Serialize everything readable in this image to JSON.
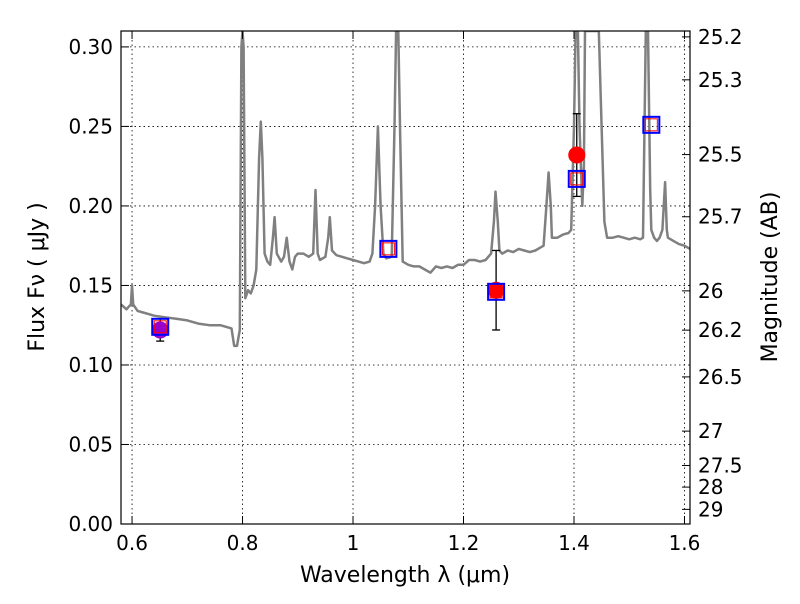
{
  "chart_data": {
    "type": "line",
    "xlabel": "Wavelength  λ (μm)",
    "ylabel": "Flux  Fν  ( μJy )",
    "ylabel_right": "Magnitude (AB)",
    "xlim": [
      0.58,
      1.61
    ],
    "ylim": [
      0.0,
      0.31
    ],
    "grid": true,
    "x_ticks": [
      0.6,
      0.8,
      1.0,
      1.2,
      1.4,
      1.6
    ],
    "x_tick_labels": [
      "0.6",
      "0.8",
      "1",
      "1.2",
      "1.4",
      "1.6"
    ],
    "y_ticks": [
      0.0,
      0.05,
      0.1,
      0.15,
      0.2,
      0.25,
      0.3
    ],
    "y_tick_labels": [
      "0.00",
      "0.05",
      "0.10",
      "0.15",
      "0.20",
      "0.25",
      "0.30"
    ],
    "right_ticks": [
      {
        "label": "25.2",
        "flux": 0.3063
      },
      {
        "label": "25.3",
        "flux": 0.2793
      },
      {
        "label": "25.5",
        "flux": 0.2323
      },
      {
        "label": "25.7",
        "flux": 0.1932
      },
      {
        "label": "26",
        "flux": 0.1466
      },
      {
        "label": "26.2",
        "flux": 0.1219
      },
      {
        "label": "26.5",
        "flux": 0.0925
      },
      {
        "label": "27",
        "flux": 0.0584
      },
      {
        "label": "27.5",
        "flux": 0.0368
      },
      {
        "label": "28",
        "flux": 0.0232
      },
      {
        "label": "29",
        "flux": 0.0092
      }
    ],
    "model_spectrum": {
      "color": "#808080",
      "points": [
        [
          0.58,
          0.138
        ],
        [
          0.59,
          0.135
        ],
        [
          0.595,
          0.137
        ],
        [
          0.598,
          0.138
        ],
        [
          0.6,
          0.15
        ],
        [
          0.602,
          0.138
        ],
        [
          0.61,
          0.134
        ],
        [
          0.62,
          0.133
        ],
        [
          0.63,
          0.132
        ],
        [
          0.64,
          0.131
        ],
        [
          0.66,
          0.13
        ],
        [
          0.68,
          0.129
        ],
        [
          0.7,
          0.128
        ],
        [
          0.72,
          0.126
        ],
        [
          0.74,
          0.125
        ],
        [
          0.76,
          0.125
        ],
        [
          0.78,
          0.123
        ],
        [
          0.785,
          0.112
        ],
        [
          0.79,
          0.112
        ],
        [
          0.795,
          0.122
        ],
        [
          0.798,
          0.3
        ],
        [
          0.8,
          0.31
        ],
        [
          0.802,
          0.3
        ],
        [
          0.805,
          0.142
        ],
        [
          0.81,
          0.147
        ],
        [
          0.815,
          0.145
        ],
        [
          0.82,
          0.15
        ],
        [
          0.825,
          0.16
        ],
        [
          0.83,
          0.23
        ],
        [
          0.833,
          0.253
        ],
        [
          0.836,
          0.23
        ],
        [
          0.84,
          0.17
        ],
        [
          0.845,
          0.165
        ],
        [
          0.85,
          0.163
        ],
        [
          0.855,
          0.18
        ],
        [
          0.858,
          0.193
        ],
        [
          0.862,
          0.17
        ],
        [
          0.87,
          0.165
        ],
        [
          0.875,
          0.168
        ],
        [
          0.88,
          0.18
        ],
        [
          0.885,
          0.165
        ],
        [
          0.89,
          0.16
        ],
        [
          0.895,
          0.168
        ],
        [
          0.9,
          0.17
        ],
        [
          0.91,
          0.17
        ],
        [
          0.92,
          0.168
        ],
        [
          0.928,
          0.17
        ],
        [
          0.932,
          0.21
        ],
        [
          0.936,
          0.17
        ],
        [
          0.94,
          0.166
        ],
        [
          0.95,
          0.168
        ],
        [
          0.955,
          0.18
        ],
        [
          0.958,
          0.193
        ],
        [
          0.962,
          0.172
        ],
        [
          0.97,
          0.169
        ],
        [
          0.98,
          0.168
        ],
        [
          0.99,
          0.167
        ],
        [
          1.0,
          0.166
        ],
        [
          1.01,
          0.165
        ],
        [
          1.02,
          0.164
        ],
        [
          1.03,
          0.165
        ],
        [
          1.035,
          0.17
        ],
        [
          1.04,
          0.2
        ],
        [
          1.045,
          0.25
        ],
        [
          1.05,
          0.2
        ],
        [
          1.055,
          0.17
        ],
        [
          1.06,
          0.167
        ],
        [
          1.07,
          0.168
        ],
        [
          1.075,
          0.25
        ],
        [
          1.078,
          0.31
        ],
        [
          1.082,
          0.31
        ],
        [
          1.085,
          0.25
        ],
        [
          1.09,
          0.165
        ],
        [
          1.1,
          0.163
        ],
        [
          1.11,
          0.162
        ],
        [
          1.12,
          0.162
        ],
        [
          1.13,
          0.16
        ],
        [
          1.14,
          0.158
        ],
        [
          1.15,
          0.162
        ],
        [
          1.16,
          0.161
        ],
        [
          1.17,
          0.162
        ],
        [
          1.18,
          0.161
        ],
        [
          1.19,
          0.163
        ],
        [
          1.2,
          0.163
        ],
        [
          1.21,
          0.166
        ],
        [
          1.22,
          0.166
        ],
        [
          1.23,
          0.165
        ],
        [
          1.24,
          0.166
        ],
        [
          1.25,
          0.17
        ],
        [
          1.255,
          0.19
        ],
        [
          1.258,
          0.209
        ],
        [
          1.262,
          0.19
        ],
        [
          1.265,
          0.172
        ],
        [
          1.27,
          0.17
        ],
        [
          1.28,
          0.172
        ],
        [
          1.29,
          0.171
        ],
        [
          1.3,
          0.173
        ],
        [
          1.31,
          0.172
        ],
        [
          1.32,
          0.171
        ],
        [
          1.33,
          0.172
        ],
        [
          1.34,
          0.174
        ],
        [
          1.345,
          0.175
        ],
        [
          1.35,
          0.2
        ],
        [
          1.354,
          0.221
        ],
        [
          1.358,
          0.2
        ],
        [
          1.36,
          0.18
        ],
        [
          1.37,
          0.18
        ],
        [
          1.38,
          0.182
        ],
        [
          1.39,
          0.183
        ],
        [
          1.395,
          0.185
        ],
        [
          1.4,
          0.25
        ],
        [
          1.403,
          0.31
        ],
        [
          1.407,
          0.31
        ],
        [
          1.41,
          0.25
        ],
        [
          1.415,
          0.2
        ],
        [
          1.418,
          0.225
        ],
        [
          1.42,
          0.31
        ],
        [
          1.44,
          0.31
        ],
        [
          1.445,
          0.31
        ],
        [
          1.45,
          0.25
        ],
        [
          1.455,
          0.19
        ],
        [
          1.46,
          0.18
        ],
        [
          1.47,
          0.18
        ],
        [
          1.48,
          0.181
        ],
        [
          1.49,
          0.18
        ],
        [
          1.5,
          0.179
        ],
        [
          1.51,
          0.18
        ],
        [
          1.52,
          0.179
        ],
        [
          1.525,
          0.18
        ],
        [
          1.53,
          0.31
        ],
        [
          1.534,
          0.31
        ],
        [
          1.538,
          0.21
        ],
        [
          1.54,
          0.185
        ],
        [
          1.545,
          0.18
        ],
        [
          1.55,
          0.178
        ],
        [
          1.555,
          0.18
        ],
        [
          1.56,
          0.185
        ],
        [
          1.565,
          0.215
        ],
        [
          1.568,
          0.185
        ],
        [
          1.57,
          0.18
        ],
        [
          1.58,
          0.178
        ],
        [
          1.59,
          0.176
        ],
        [
          1.6,
          0.175
        ],
        [
          1.61,
          0.173
        ]
      ]
    },
    "observed_points": [
      {
        "x": 0.651,
        "y": 0.122,
        "yerr": 0.007,
        "color": "#9900cc"
      },
      {
        "x": 1.259,
        "y": 0.147,
        "yerr": 0.025,
        "color": "#ff0000"
      },
      {
        "x": 1.405,
        "y": 0.232,
        "yerr": 0.026,
        "color": "#ff0000"
      }
    ],
    "model_points": [
      {
        "x": 0.651,
        "y": 0.124
      },
      {
        "x": 1.064,
        "y": 0.173
      },
      {
        "x": 1.259,
        "y": 0.146
      },
      {
        "x": 1.405,
        "y": 0.217
      },
      {
        "x": 1.54,
        "y": 0.251
      }
    ]
  }
}
